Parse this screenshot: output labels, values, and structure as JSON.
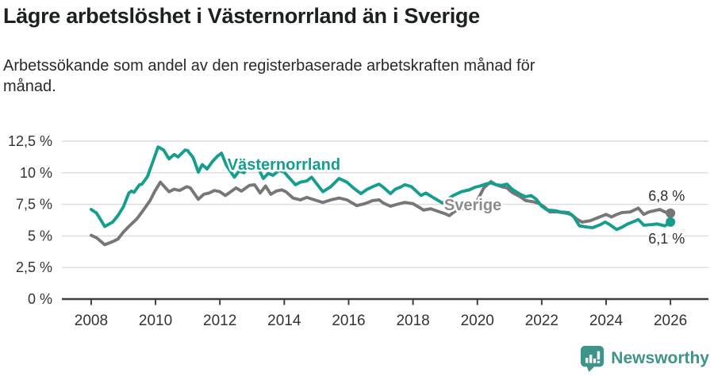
{
  "header": {
    "title": "Lägre arbetslöshet i Västernorrland än i Sverige",
    "subtitle": "Arbetssökande som andel av den registerbaserade arbetskraften månad för månad."
  },
  "footer": {
    "brand": "Newsworthy",
    "logo_icon": "newsworthy-speech-bubble-bar-chart-icon"
  },
  "colors": {
    "vasternorrland": "#149e8e",
    "sverige": "#777777",
    "sverige_label": "#8c8c8c",
    "grid": "#dcdcdc",
    "axis": "#3f3f3f",
    "tick_text": "#333333",
    "value_label_text": "#2e2e2e",
    "brand_teal": "#3e948b"
  },
  "chart_data": {
    "type": "line",
    "title": "Lägre arbetslöshet i Västernorrland än i Sverige",
    "subtitle": "Arbetssökande som andel av den registerbaserade arbetskraften månad för månad.",
    "unit": "%",
    "grid": true,
    "legend_position": "inline-labels",
    "xlim": [
      2007.09,
      2027.18
    ],
    "ylim": [
      0,
      12.5
    ],
    "x_ticks": {
      "values": [
        2008,
        2010,
        2012,
        2014,
        2016,
        2018,
        2020,
        2022,
        2024,
        2026
      ],
      "labels": [
        "2008",
        "2010",
        "2012",
        "2014",
        "2016",
        "2018",
        "2020",
        "2022",
        "2024",
        "2026"
      ]
    },
    "y_ticks": {
      "values": [
        0,
        2.5,
        5,
        7.5,
        10,
        12.5
      ],
      "labels": [
        "0 %",
        "2,5 %",
        "5 %",
        "7,5 %",
        "10 %",
        "12,5 %"
      ]
    },
    "series": [
      {
        "name": "Sverige",
        "color": "#777777",
        "end_value": 6.8,
        "end_value_label": "6,8 %",
        "points": [
          [
            2008.0,
            5.05
          ],
          [
            2008.17,
            4.85
          ],
          [
            2008.42,
            4.3
          ],
          [
            2008.67,
            4.55
          ],
          [
            2008.83,
            4.75
          ],
          [
            2009.0,
            5.3
          ],
          [
            2009.17,
            5.75
          ],
          [
            2009.42,
            6.35
          ],
          [
            2009.58,
            6.9
          ],
          [
            2009.83,
            7.8
          ],
          [
            2009.97,
            8.5
          ],
          [
            2010.15,
            9.25
          ],
          [
            2010.42,
            8.5
          ],
          [
            2010.58,
            8.7
          ],
          [
            2010.75,
            8.6
          ],
          [
            2010.97,
            8.9
          ],
          [
            2011.08,
            8.8
          ],
          [
            2011.33,
            7.9
          ],
          [
            2011.5,
            8.3
          ],
          [
            2011.67,
            8.4
          ],
          [
            2011.83,
            8.6
          ],
          [
            2012.0,
            8.5
          ],
          [
            2012.17,
            8.2
          ],
          [
            2012.5,
            8.8
          ],
          [
            2012.67,
            8.55
          ],
          [
            2012.92,
            9.0
          ],
          [
            2013.08,
            9.05
          ],
          [
            2013.25,
            8.4
          ],
          [
            2013.42,
            8.95
          ],
          [
            2013.58,
            8.3
          ],
          [
            2013.75,
            8.55
          ],
          [
            2013.92,
            8.65
          ],
          [
            2014.05,
            8.5
          ],
          [
            2014.27,
            8.0
          ],
          [
            2014.5,
            7.85
          ],
          [
            2014.7,
            8.05
          ],
          [
            2015.0,
            7.8
          ],
          [
            2015.2,
            7.65
          ],
          [
            2015.45,
            7.85
          ],
          [
            2015.7,
            8.0
          ],
          [
            2015.95,
            7.85
          ],
          [
            2016.25,
            7.4
          ],
          [
            2016.5,
            7.55
          ],
          [
            2016.75,
            7.8
          ],
          [
            2016.95,
            7.85
          ],
          [
            2017.08,
            7.6
          ],
          [
            2017.3,
            7.35
          ],
          [
            2017.5,
            7.5
          ],
          [
            2017.75,
            7.65
          ],
          [
            2018.0,
            7.55
          ],
          [
            2018.2,
            7.25
          ],
          [
            2018.33,
            7.05
          ],
          [
            2018.55,
            7.15
          ],
          [
            2018.83,
            6.9
          ],
          [
            2019.0,
            6.75
          ],
          [
            2019.13,
            6.6
          ],
          [
            2019.3,
            6.95
          ],
          [
            2019.55,
            7.15
          ],
          [
            2019.8,
            7.4
          ],
          [
            2020.0,
            7.8
          ],
          [
            2020.2,
            8.8
          ],
          [
            2020.42,
            9.3
          ],
          [
            2020.58,
            9.05
          ],
          [
            2020.75,
            8.9
          ],
          [
            2020.92,
            8.8
          ],
          [
            2021.08,
            8.45
          ],
          [
            2021.33,
            8.1
          ],
          [
            2021.5,
            7.8
          ],
          [
            2021.75,
            7.7
          ],
          [
            2021.92,
            7.55
          ],
          [
            2022.08,
            7.3
          ],
          [
            2022.25,
            6.9
          ],
          [
            2022.5,
            6.9
          ],
          [
            2022.75,
            6.8
          ],
          [
            2022.92,
            6.7
          ],
          [
            2023.08,
            6.35
          ],
          [
            2023.25,
            6.1
          ],
          [
            2023.5,
            6.2
          ],
          [
            2023.75,
            6.45
          ],
          [
            2024.0,
            6.7
          ],
          [
            2024.17,
            6.5
          ],
          [
            2024.33,
            6.7
          ],
          [
            2024.5,
            6.85
          ],
          [
            2024.75,
            6.9
          ],
          [
            2024.92,
            7.1
          ],
          [
            2025.0,
            7.2
          ],
          [
            2025.17,
            6.7
          ],
          [
            2025.33,
            6.9
          ],
          [
            2025.5,
            7.0
          ],
          [
            2025.67,
            7.1
          ],
          [
            2025.83,
            6.9
          ],
          [
            2026.0,
            6.8
          ]
        ]
      },
      {
        "name": "Västernorrland",
        "color": "#149e8e",
        "end_value": 6.1,
        "end_value_label": "6,1 %",
        "points": [
          [
            2008.0,
            7.1
          ],
          [
            2008.17,
            6.8
          ],
          [
            2008.42,
            5.75
          ],
          [
            2008.67,
            6.1
          ],
          [
            2008.83,
            6.6
          ],
          [
            2009.0,
            7.3
          ],
          [
            2009.17,
            8.4
          ],
          [
            2009.25,
            8.55
          ],
          [
            2009.33,
            8.45
          ],
          [
            2009.5,
            9.05
          ],
          [
            2009.58,
            9.1
          ],
          [
            2009.75,
            9.7
          ],
          [
            2009.92,
            10.9
          ],
          [
            2010.08,
            12.05
          ],
          [
            2010.25,
            11.8
          ],
          [
            2010.42,
            11.1
          ],
          [
            2010.58,
            11.45
          ],
          [
            2010.7,
            11.25
          ],
          [
            2010.92,
            11.8
          ],
          [
            2011.0,
            11.75
          ],
          [
            2011.17,
            11.2
          ],
          [
            2011.33,
            10.05
          ],
          [
            2011.45,
            10.65
          ],
          [
            2011.6,
            10.3
          ],
          [
            2011.77,
            10.9
          ],
          [
            2011.92,
            11.3
          ],
          [
            2012.05,
            11.55
          ],
          [
            2012.2,
            10.6
          ],
          [
            2012.45,
            9.65
          ],
          [
            2012.6,
            10.15
          ],
          [
            2012.75,
            10.0
          ],
          [
            2012.9,
            10.55
          ],
          [
            2013.05,
            10.8
          ],
          [
            2013.2,
            10.3
          ],
          [
            2013.35,
            9.55
          ],
          [
            2013.5,
            9.95
          ],
          [
            2013.65,
            9.8
          ],
          [
            2013.85,
            10.2
          ],
          [
            2014.0,
            10.05
          ],
          [
            2014.1,
            9.75
          ],
          [
            2014.35,
            9.05
          ],
          [
            2014.5,
            9.25
          ],
          [
            2014.7,
            9.35
          ],
          [
            2014.85,
            9.65
          ],
          [
            2015.2,
            8.5
          ],
          [
            2015.45,
            8.9
          ],
          [
            2015.7,
            9.55
          ],
          [
            2015.95,
            9.25
          ],
          [
            2016.15,
            8.8
          ],
          [
            2016.38,
            8.35
          ],
          [
            2016.55,
            8.65
          ],
          [
            2016.75,
            8.9
          ],
          [
            2016.95,
            9.1
          ],
          [
            2017.1,
            8.8
          ],
          [
            2017.3,
            8.35
          ],
          [
            2017.45,
            8.7
          ],
          [
            2017.6,
            8.85
          ],
          [
            2017.75,
            9.05
          ],
          [
            2017.95,
            8.9
          ],
          [
            2018.25,
            8.2
          ],
          [
            2018.4,
            8.4
          ],
          [
            2018.65,
            8.0
          ],
          [
            2018.92,
            7.6
          ],
          [
            2019.05,
            7.85
          ],
          [
            2019.25,
            8.2
          ],
          [
            2019.5,
            8.5
          ],
          [
            2019.75,
            8.65
          ],
          [
            2019.92,
            8.85
          ],
          [
            2020.08,
            8.95
          ],
          [
            2020.25,
            9.1
          ],
          [
            2020.42,
            9.2
          ],
          [
            2020.58,
            9.05
          ],
          [
            2020.75,
            9.0
          ],
          [
            2020.92,
            9.1
          ],
          [
            2021.08,
            8.7
          ],
          [
            2021.33,
            8.3
          ],
          [
            2021.5,
            8.1
          ],
          [
            2021.67,
            8.2
          ],
          [
            2021.83,
            7.9
          ],
          [
            2022.0,
            7.35
          ],
          [
            2022.17,
            7.05
          ],
          [
            2022.42,
            7.0
          ],
          [
            2022.58,
            6.9
          ],
          [
            2022.83,
            6.85
          ],
          [
            2023.0,
            6.5
          ],
          [
            2023.17,
            5.8
          ],
          [
            2023.42,
            5.7
          ],
          [
            2023.58,
            5.65
          ],
          [
            2023.83,
            5.9
          ],
          [
            2023.97,
            6.1
          ],
          [
            2024.08,
            5.95
          ],
          [
            2024.33,
            5.5
          ],
          [
            2024.5,
            5.7
          ],
          [
            2024.67,
            5.95
          ],
          [
            2024.92,
            6.2
          ],
          [
            2025.0,
            6.3
          ],
          [
            2025.17,
            5.85
          ],
          [
            2025.42,
            5.9
          ],
          [
            2025.58,
            5.95
          ],
          [
            2025.83,
            5.8
          ],
          [
            2026.0,
            6.1
          ]
        ]
      }
    ],
    "annotations": [
      {
        "text": "Västernorrland",
        "year": 2013.99,
        "value": 10.68,
        "color": "#149e8e",
        "role": "series-label-vasternorrland",
        "bold": true,
        "size": 20
      },
      {
        "text": "Sverige",
        "year": 2019.86,
        "value": 7.48,
        "color": "#8c8c8c",
        "role": "series-label-sverige",
        "bold": true,
        "size": 20
      },
      {
        "text": "6,8 %",
        "year": 2025.88,
        "value": 8.23,
        "color": "#2e2e2e",
        "role": "end-value-label-sverige",
        "bold": false,
        "size": 18
      },
      {
        "text": "6,1 %",
        "year": 2025.88,
        "value": 4.84,
        "color": "#2e2e2e",
        "role": "end-value-label-vasternorrland",
        "bold": false,
        "size": 18
      }
    ]
  }
}
